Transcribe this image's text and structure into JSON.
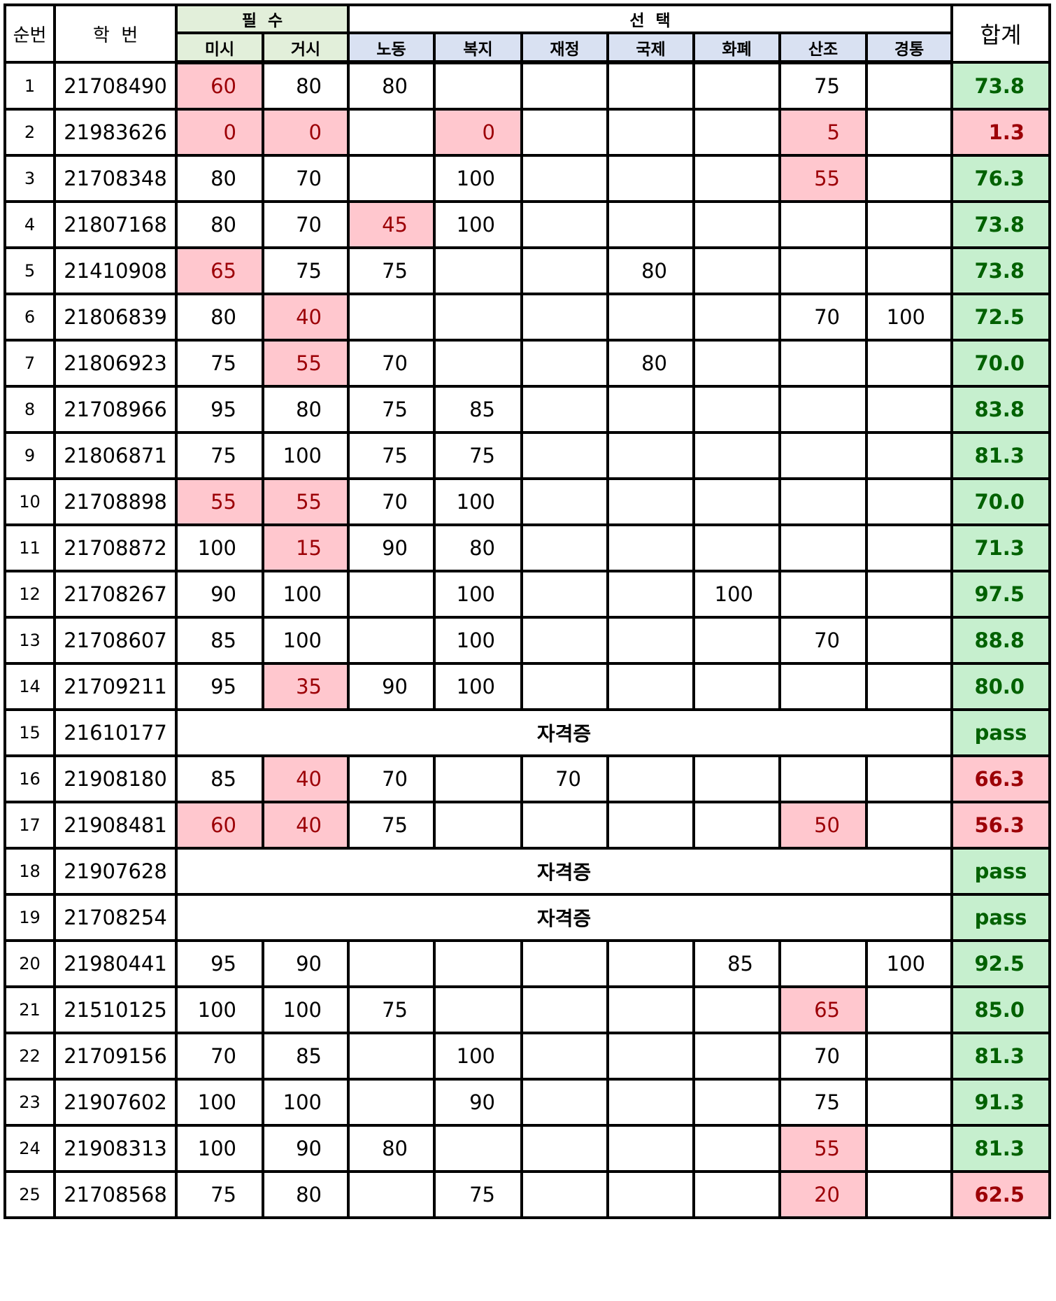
{
  "header": {
    "no": "순번",
    "student_id": "학  번",
    "required": "필  수",
    "elective": "선  택",
    "total": "합계",
    "subjects": [
      "미시",
      "거시",
      "노동",
      "복지",
      "재정",
      "국제",
      "화폐",
      "산조",
      "경통"
    ]
  },
  "colors": {
    "fail_bg": "#ffc7ce",
    "fail_text": "#9c0006",
    "pass_bg": "#c6efce",
    "pass_text": "#006100",
    "required_header": "#e2efda",
    "elective_header": "#d9e1f2"
  },
  "rows": [
    {
      "no": "1",
      "id": "21708490",
      "scores": [
        "60",
        "80",
        "80",
        "",
        "",
        "",
        "",
        "75",
        ""
      ],
      "low": [
        0
      ],
      "total": "73.8",
      "total_low": false
    },
    {
      "no": "2",
      "id": "21983626",
      "scores": [
        "0",
        "0",
        "",
        "0",
        "",
        "",
        "",
        "5",
        ""
      ],
      "low": [
        0,
        1,
        3,
        7
      ],
      "total": "1.3",
      "total_low": true
    },
    {
      "no": "3",
      "id": "21708348",
      "scores": [
        "80",
        "70",
        "",
        "100",
        "",
        "",
        "",
        "55",
        ""
      ],
      "low": [
        7
      ],
      "total": "76.3",
      "total_low": false
    },
    {
      "no": "4",
      "id": "21807168",
      "scores": [
        "80",
        "70",
        "45",
        "100",
        "",
        "",
        "",
        "",
        ""
      ],
      "low": [
        2
      ],
      "total": "73.8",
      "total_low": false
    },
    {
      "no": "5",
      "id": "21410908",
      "scores": [
        "65",
        "75",
        "75",
        "",
        "",
        "80",
        "",
        "",
        ""
      ],
      "low": [
        0
      ],
      "total": "73.8",
      "total_low": false
    },
    {
      "no": "6",
      "id": "21806839",
      "scores": [
        "80",
        "40",
        "",
        "",
        "",
        "",
        "",
        "70",
        "100"
      ],
      "low": [
        1
      ],
      "total": "72.5",
      "total_low": false
    },
    {
      "no": "7",
      "id": "21806923",
      "scores": [
        "75",
        "55",
        "70",
        "",
        "",
        "80",
        "",
        "",
        ""
      ],
      "low": [
        1
      ],
      "total": "70.0",
      "total_low": false
    },
    {
      "no": "8",
      "id": "21708966",
      "scores": [
        "95",
        "80",
        "75",
        "85",
        "",
        "",
        "",
        "",
        ""
      ],
      "low": [],
      "total": "83.8",
      "total_low": false
    },
    {
      "no": "9",
      "id": "21806871",
      "scores": [
        "75",
        "100",
        "75",
        "75",
        "",
        "",
        "",
        "",
        ""
      ],
      "low": [],
      "total": "81.3",
      "total_low": false
    },
    {
      "no": "10",
      "id": "21708898",
      "scores": [
        "55",
        "55",
        "70",
        "100",
        "",
        "",
        "",
        "",
        ""
      ],
      "low": [
        0,
        1
      ],
      "total": "70.0",
      "total_low": false
    },
    {
      "no": "11",
      "id": "21708872",
      "scores": [
        "100",
        "15",
        "90",
        "80",
        "",
        "",
        "",
        "",
        ""
      ],
      "low": [
        1
      ],
      "total": "71.3",
      "total_low": false
    },
    {
      "no": "12",
      "id": "21708267",
      "scores": [
        "90",
        "100",
        "",
        "100",
        "",
        "",
        "100",
        "",
        ""
      ],
      "low": [],
      "total": "97.5",
      "total_low": false
    },
    {
      "no": "13",
      "id": "21708607",
      "scores": [
        "85",
        "100",
        "",
        "100",
        "",
        "",
        "",
        "70",
        ""
      ],
      "low": [],
      "total": "88.8",
      "total_low": false
    },
    {
      "no": "14",
      "id": "21709211",
      "scores": [
        "95",
        "35",
        "90",
        "100",
        "",
        "",
        "",
        "",
        ""
      ],
      "low": [
        1
      ],
      "total": "80.0",
      "total_low": false
    },
    {
      "no": "15",
      "id": "21610177",
      "certificate": "자격증",
      "total": "pass",
      "total_low": false
    },
    {
      "no": "16",
      "id": "21908180",
      "scores": [
        "85",
        "40",
        "70",
        "",
        "70",
        "",
        "",
        "",
        ""
      ],
      "low": [
        1
      ],
      "total": "66.3",
      "total_low": true
    },
    {
      "no": "17",
      "id": "21908481",
      "scores": [
        "60",
        "40",
        "75",
        "",
        "",
        "",
        "",
        "50",
        ""
      ],
      "low": [
        0,
        1,
        7
      ],
      "total": "56.3",
      "total_low": true
    },
    {
      "no": "18",
      "id": "21907628",
      "certificate": "자격증",
      "total": "pass",
      "total_low": false
    },
    {
      "no": "19",
      "id": "21708254",
      "certificate": "자격증",
      "total": "pass",
      "total_low": false
    },
    {
      "no": "20",
      "id": "21980441",
      "scores": [
        "95",
        "90",
        "",
        "",
        "",
        "",
        "85",
        "",
        "100"
      ],
      "low": [],
      "total": "92.5",
      "total_low": false
    },
    {
      "no": "21",
      "id": "21510125",
      "scores": [
        "100",
        "100",
        "75",
        "",
        "",
        "",
        "",
        "65",
        ""
      ],
      "low": [
        7
      ],
      "total": "85.0",
      "total_low": false
    },
    {
      "no": "22",
      "id": "21709156",
      "scores": [
        "70",
        "85",
        "",
        "100",
        "",
        "",
        "",
        "70",
        ""
      ],
      "low": [],
      "total": "81.3",
      "total_low": false
    },
    {
      "no": "23",
      "id": "21907602",
      "scores": [
        "100",
        "100",
        "",
        "90",
        "",
        "",
        "",
        "75",
        ""
      ],
      "low": [],
      "total": "91.3",
      "total_low": false
    },
    {
      "no": "24",
      "id": "21908313",
      "scores": [
        "100",
        "90",
        "80",
        "",
        "",
        "",
        "",
        "55",
        ""
      ],
      "low": [
        7
      ],
      "total": "81.3",
      "total_low": false
    },
    {
      "no": "25",
      "id": "21708568",
      "scores": [
        "75",
        "80",
        "",
        "75",
        "",
        "",
        "",
        "20",
        ""
      ],
      "low": [
        7
      ],
      "total": "62.5",
      "total_low": true
    }
  ]
}
